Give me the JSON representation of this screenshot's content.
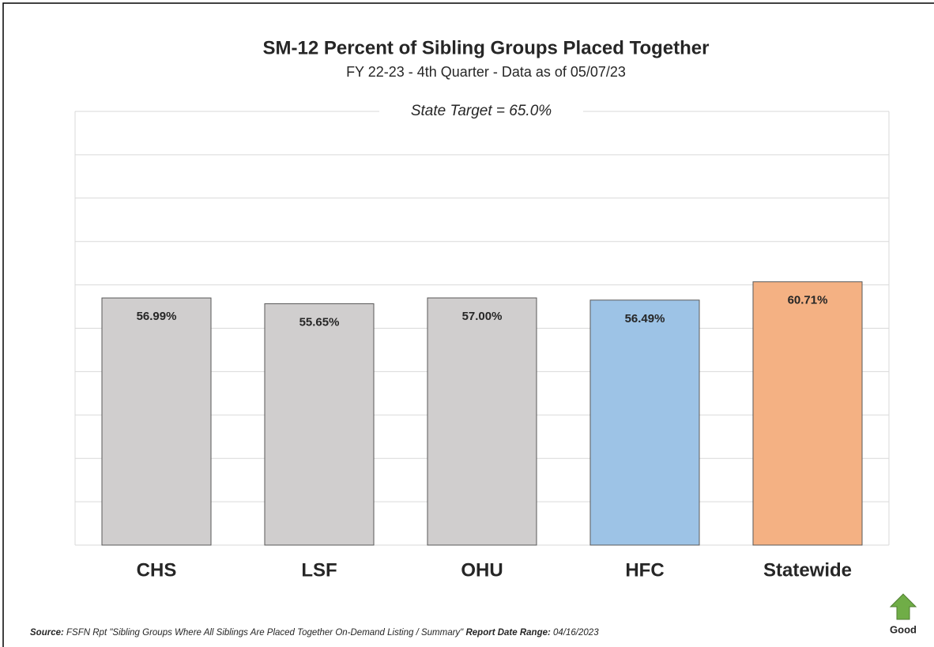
{
  "chart_data": {
    "type": "bar",
    "title": "SM-12 Percent of Sibling Groups Placed Together",
    "subtitle": "FY 22-23 - 4th Quarter - Data as of 05/07/23",
    "target_label": "State Target = 65.0%",
    "categories": [
      "CHS",
      "LSF",
      "OHU",
      "HFC",
      "Statewide"
    ],
    "values": [
      56.99,
      55.65,
      57.0,
      56.49,
      60.71
    ],
    "value_labels": [
      "56.99%",
      "55.65%",
      "57.00%",
      "56.49%",
      "60.71%"
    ],
    "colors": [
      "#d0cece",
      "#d0cece",
      "#d0cece",
      "#9dc3e6",
      "#f4b183"
    ],
    "ylim": [
      0,
      100
    ],
    "yticks": [
      0,
      10,
      20,
      30,
      40,
      50,
      60,
      70,
      80,
      90,
      100
    ],
    "grid": true,
    "source": {
      "label": "Source:",
      "text": "FSFN Rpt \"Sibling Groups Where All Siblings Are Placed Together On-Demand Listing / Summary\"",
      "range_label": "Report Date Range:",
      "range": "04/16/2023"
    },
    "direction_label": "Good"
  }
}
